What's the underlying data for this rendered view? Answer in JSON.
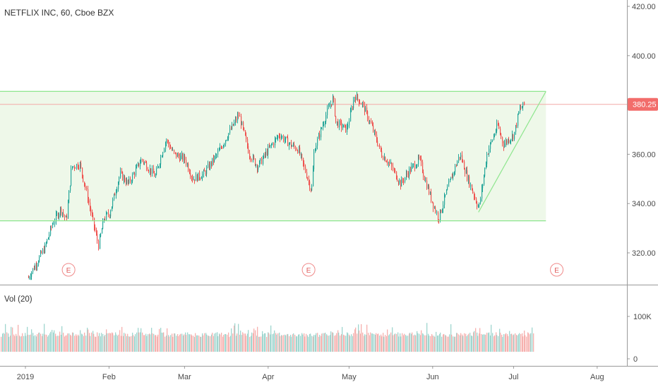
{
  "header": {
    "title": "NETFLIX INC, 60, Cboe BZX"
  },
  "volume_panel": {
    "label": "Vol (20)"
  },
  "colors": {
    "up": "#26a69a",
    "down": "#ef5350",
    "channel_line": "#8ee68e",
    "channel_fill": "#eef8e9",
    "price_badge": "#f26d6b",
    "axis_text": "#4a4a4a",
    "separator": "#9a9a9a"
  },
  "chart_data": {
    "type": "candlestick",
    "title": "NETFLIX INC, 60, Cboe BZX",
    "price_axis": {
      "ticks": [
        320,
        340,
        360,
        380,
        400,
        420
      ],
      "tick_labels": [
        "320.00",
        "340.00",
        "360.00",
        "380.00",
        "400.00",
        "420.00"
      ],
      "range": [
        307,
        428
      ]
    },
    "time_axis": {
      "labels": [
        "2019",
        "Feb",
        "Mar",
        "Apr",
        "May",
        "Jun",
        "Jul",
        "Aug"
      ],
      "dates": [
        "2019-01-01",
        "2019-02-01",
        "2019-03-01",
        "2019-04-01",
        "2019-05-01",
        "2019-06-01",
        "2019-07-01",
        "2019-08-01"
      ]
    },
    "last_price": {
      "value": 380.25,
      "label": "380.25"
    },
    "price_path": [
      {
        "date": "2019-01-02",
        "price": 310
      },
      {
        "date": "2019-01-08",
        "price": 322
      },
      {
        "date": "2019-01-11",
        "price": 332
      },
      {
        "date": "2019-01-14",
        "price": 338
      },
      {
        "date": "2019-01-16",
        "price": 333
      },
      {
        "date": "2019-01-18",
        "price": 355
      },
      {
        "date": "2019-01-21",
        "price": 356
      },
      {
        "date": "2019-01-23",
        "price": 347
      },
      {
        "date": "2019-01-25",
        "price": 337
      },
      {
        "date": "2019-01-28",
        "price": 323
      },
      {
        "date": "2019-01-30",
        "price": 334
      },
      {
        "date": "2019-02-01",
        "price": 336
      },
      {
        "date": "2019-02-05",
        "price": 352
      },
      {
        "date": "2019-02-08",
        "price": 348
      },
      {
        "date": "2019-02-13",
        "price": 358
      },
      {
        "date": "2019-02-18",
        "price": 351
      },
      {
        "date": "2019-02-22",
        "price": 366
      },
      {
        "date": "2019-02-25",
        "price": 360
      },
      {
        "date": "2019-03-01",
        "price": 358
      },
      {
        "date": "2019-03-04",
        "price": 350
      },
      {
        "date": "2019-03-08",
        "price": 352
      },
      {
        "date": "2019-03-13",
        "price": 360
      },
      {
        "date": "2019-03-18",
        "price": 370
      },
      {
        "date": "2019-03-21",
        "price": 376
      },
      {
        "date": "2019-03-25",
        "price": 360
      },
      {
        "date": "2019-03-28",
        "price": 355
      },
      {
        "date": "2019-04-01",
        "price": 362
      },
      {
        "date": "2019-04-05",
        "price": 368
      },
      {
        "date": "2019-04-09",
        "price": 364
      },
      {
        "date": "2019-04-12",
        "price": 362
      },
      {
        "date": "2019-04-15",
        "price": 352
      },
      {
        "date": "2019-04-17",
        "price": 345
      },
      {
        "date": "2019-04-18",
        "price": 362
      },
      {
        "date": "2019-04-23",
        "price": 378
      },
      {
        "date": "2019-04-25",
        "price": 383
      },
      {
        "date": "2019-04-26",
        "price": 373
      },
      {
        "date": "2019-04-30",
        "price": 370
      },
      {
        "date": "2019-05-03",
        "price": 384
      },
      {
        "date": "2019-05-06",
        "price": 380
      },
      {
        "date": "2019-05-09",
        "price": 372
      },
      {
        "date": "2019-05-13",
        "price": 360
      },
      {
        "date": "2019-05-16",
        "price": 356
      },
      {
        "date": "2019-05-20",
        "price": 348
      },
      {
        "date": "2019-05-23",
        "price": 353
      },
      {
        "date": "2019-05-27",
        "price": 358
      },
      {
        "date": "2019-05-29",
        "price": 350
      },
      {
        "date": "2019-05-31",
        "price": 343
      },
      {
        "date": "2019-06-03",
        "price": 334
      },
      {
        "date": "2019-06-07",
        "price": 348
      },
      {
        "date": "2019-06-11",
        "price": 360
      },
      {
        "date": "2019-06-14",
        "price": 350
      },
      {
        "date": "2019-06-18",
        "price": 338
      },
      {
        "date": "2019-06-21",
        "price": 360
      },
      {
        "date": "2019-06-25",
        "price": 372
      },
      {
        "date": "2019-06-27",
        "price": 364
      },
      {
        "date": "2019-07-01",
        "price": 368
      },
      {
        "date": "2019-07-03",
        "price": 378
      },
      {
        "date": "2019-07-05",
        "price": 380.25
      }
    ],
    "trendlines": [
      {
        "name": "channel-top",
        "from": {
          "date": "2019-01-01",
          "price": 385.5
        },
        "to": {
          "date": "2019-07-13",
          "price": 385.5
        }
      },
      {
        "name": "channel-bottom",
        "from": {
          "date": "2019-01-01",
          "price": 333
        },
        "to": {
          "date": "2019-07-13",
          "price": 333
        }
      },
      {
        "name": "rising-support",
        "from": {
          "date": "2019-06-18",
          "price": 336.5
        },
        "to": {
          "date": "2019-07-13",
          "price": 385.5
        }
      }
    ],
    "earnings_markers": [
      {
        "label": "E",
        "date": "2019-01-17"
      },
      {
        "label": "E",
        "date": "2019-04-16"
      },
      {
        "label": "E",
        "date": "2019-07-17"
      }
    ],
    "volume": {
      "label": "Vol (20)",
      "ticks": [
        0,
        100000
      ],
      "tick_labels": [
        "0",
        "100K"
      ],
      "range": [
        0,
        150000
      ]
    }
  }
}
